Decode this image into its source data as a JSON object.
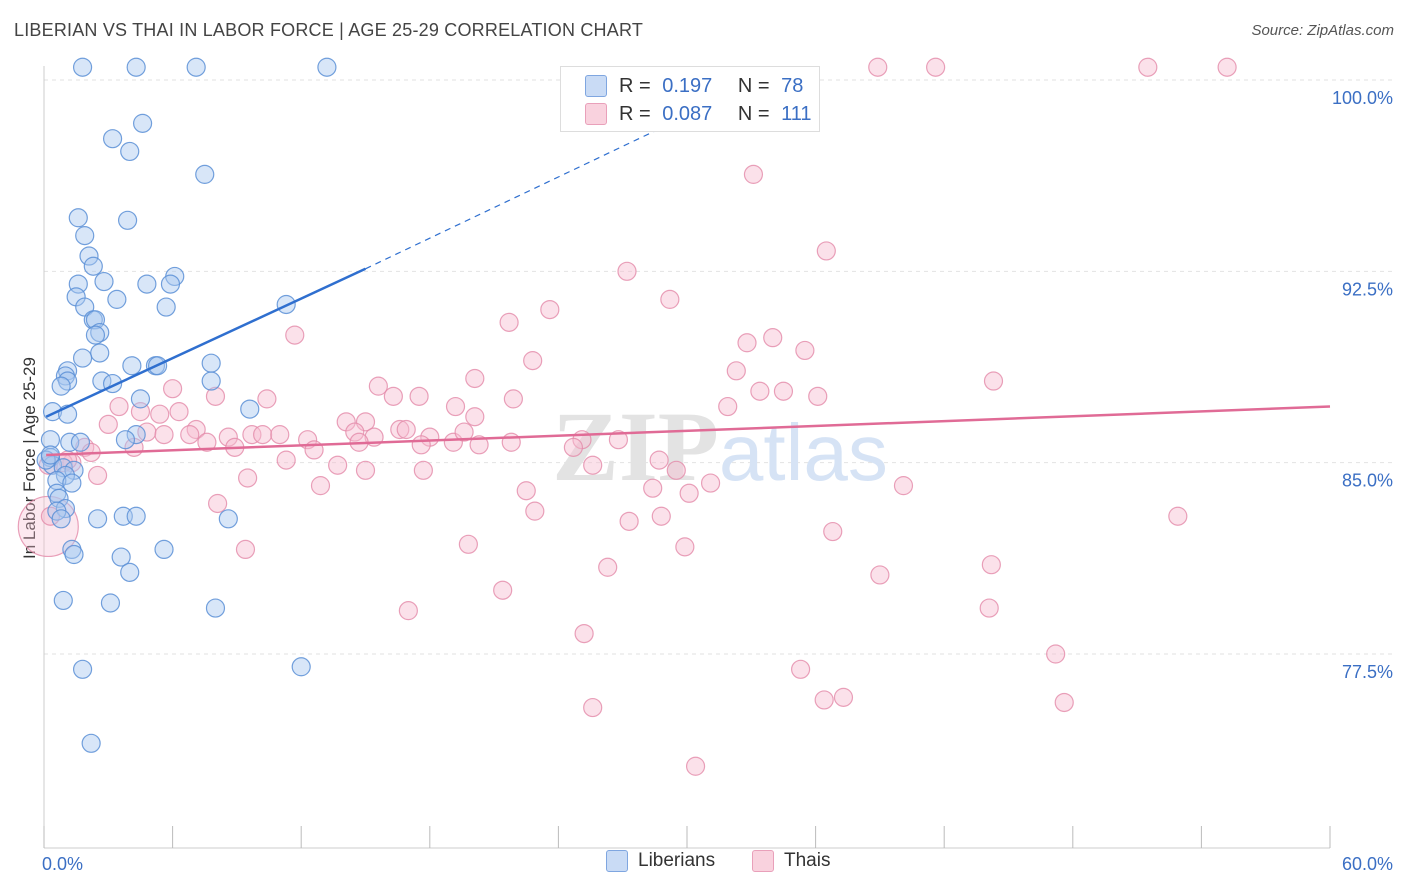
{
  "title": "LIBERIAN VS THAI IN LABOR FORCE | AGE 25-29 CORRELATION CHART",
  "source": "Source: ZipAtlas.com",
  "watermark": "ZIPatlas",
  "legend_top": {
    "rows": [
      {
        "r_label": "R =",
        "r_value": "0.197",
        "n_label": "N =",
        "n_value": "78"
      },
      {
        "r_label": "R =",
        "r_value": "0.087",
        "n_label": "N =",
        "n_value": "111"
      }
    ]
  },
  "legend_bottom": [
    "Liberians",
    "Thais"
  ],
  "colors": {
    "liberians_fill": "#a9c8f0",
    "liberians_stroke": "#5b8fd6",
    "liberians_line": "#2f6fcf",
    "thais_fill": "#f6bdd0",
    "thais_stroke": "#e48aa9",
    "thais_line": "#e06b96",
    "tick_label": "#3b6fc4",
    "grid": "#e2e2e2"
  },
  "chart_data": {
    "type": "scatter",
    "title": "LIBERIAN VS THAI IN LABOR FORCE | AGE 25-29 CORRELATION CHART",
    "xlabel": "",
    "ylabel": "In Labor Force | Age 25-29",
    "xlim": [
      0,
      60
    ],
    "ylim": [
      71,
      102
    ],
    "x_tick_labels": [
      "0.0%",
      "60.0%"
    ],
    "y_ticks": [
      77.5,
      85.0,
      92.5,
      100.0
    ],
    "y_tick_labels": [
      "77.5%",
      "85.0%",
      "92.5%",
      "100.0%"
    ],
    "grid": true,
    "legend_position": "top-center",
    "series": [
      {
        "name": "Liberians",
        "R": 0.197,
        "N": 78,
        "trend": {
          "x": [
            0.1,
            15.0
          ],
          "y": [
            86.8,
            92.6
          ],
          "dashed_to": [
            30.0,
            98.6
          ]
        },
        "points": [
          [
            1.8,
            100.5
          ],
          [
            4.3,
            100.5
          ],
          [
            7.1,
            100.5
          ],
          [
            13.2,
            100.5
          ],
          [
            4.6,
            98.3
          ],
          [
            3.2,
            97.7
          ],
          [
            4.0,
            97.2
          ],
          [
            7.5,
            96.3
          ],
          [
            1.6,
            94.6
          ],
          [
            3.9,
            94.5
          ],
          [
            1.9,
            93.9
          ],
          [
            2.1,
            93.1
          ],
          [
            2.3,
            92.7
          ],
          [
            6.1,
            92.3
          ],
          [
            2.8,
            92.1
          ],
          [
            4.8,
            92.0
          ],
          [
            5.9,
            92.0
          ],
          [
            1.6,
            92.0
          ],
          [
            1.5,
            91.5
          ],
          [
            3.4,
            91.4
          ],
          [
            11.3,
            91.2
          ],
          [
            5.7,
            91.1
          ],
          [
            1.9,
            91.1
          ],
          [
            2.3,
            90.6
          ],
          [
            2.4,
            90.6
          ],
          [
            2.6,
            90.1
          ],
          [
            2.4,
            90.0
          ],
          [
            2.6,
            89.3
          ],
          [
            1.8,
            89.1
          ],
          [
            1.1,
            88.6
          ],
          [
            7.8,
            88.9
          ],
          [
            4.1,
            88.8
          ],
          [
            5.2,
            88.8
          ],
          [
            5.3,
            88.8
          ],
          [
            1.0,
            88.4
          ],
          [
            1.1,
            88.2
          ],
          [
            0.8,
            88.0
          ],
          [
            2.7,
            88.2
          ],
          [
            3.2,
            88.1
          ],
          [
            7.8,
            88.2
          ],
          [
            4.5,
            87.5
          ],
          [
            9.6,
            87.1
          ],
          [
            0.4,
            87.0
          ],
          [
            1.1,
            86.9
          ],
          [
            4.3,
            86.1
          ],
          [
            3.8,
            85.9
          ],
          [
            1.2,
            85.8
          ],
          [
            0.3,
            85.9
          ],
          [
            1.7,
            85.8
          ],
          [
            0.3,
            85.2
          ],
          [
            0.4,
            84.9
          ],
          [
            0.9,
            84.8
          ],
          [
            1.4,
            84.7
          ],
          [
            1.0,
            84.5
          ],
          [
            0.6,
            84.3
          ],
          [
            1.3,
            84.2
          ],
          [
            0.6,
            83.8
          ],
          [
            0.7,
            83.6
          ],
          [
            1.0,
            83.2
          ],
          [
            0.6,
            83.1
          ],
          [
            0.8,
            82.8
          ],
          [
            2.5,
            82.8
          ],
          [
            3.7,
            82.9
          ],
          [
            4.3,
            82.9
          ],
          [
            8.6,
            82.8
          ],
          [
            1.3,
            81.6
          ],
          [
            1.4,
            81.4
          ],
          [
            5.6,
            81.6
          ],
          [
            3.6,
            81.3
          ],
          [
            4.0,
            80.7
          ],
          [
            0.9,
            79.6
          ],
          [
            3.1,
            79.5
          ],
          [
            8.0,
            79.3
          ],
          [
            1.8,
            76.9
          ],
          [
            12.0,
            77.0
          ],
          [
            2.2,
            74.0
          ],
          [
            0.1,
            85.1
          ],
          [
            0.3,
            85.3
          ]
        ]
      },
      {
        "name": "Thais",
        "R": 0.087,
        "N": 111,
        "trend": {
          "x": [
            0.1,
            60.0
          ],
          "y": [
            85.3,
            87.2
          ]
        },
        "points": [
          [
            0.2,
            82.5
          ],
          [
            38.9,
            100.5
          ],
          [
            41.6,
            100.5
          ],
          [
            51.5,
            100.5
          ],
          [
            55.2,
            100.5
          ],
          [
            33.1,
            96.3
          ],
          [
            36.5,
            93.3
          ],
          [
            27.2,
            92.5
          ],
          [
            29.2,
            91.4
          ],
          [
            23.6,
            91.0
          ],
          [
            21.7,
            90.5
          ],
          [
            11.7,
            90.0
          ],
          [
            32.8,
            89.7
          ],
          [
            34.0,
            89.9
          ],
          [
            35.5,
            89.4
          ],
          [
            22.8,
            89.0
          ],
          [
            32.3,
            88.6
          ],
          [
            20.1,
            88.3
          ],
          [
            44.3,
            88.2
          ],
          [
            15.6,
            88.0
          ],
          [
            33.4,
            87.8
          ],
          [
            34.5,
            87.8
          ],
          [
            6.0,
            87.9
          ],
          [
            8.0,
            87.6
          ],
          [
            10.4,
            87.5
          ],
          [
            16.3,
            87.6
          ],
          [
            17.5,
            87.6
          ],
          [
            21.9,
            87.5
          ],
          [
            36.1,
            87.6
          ],
          [
            3.5,
            87.2
          ],
          [
            4.5,
            87.0
          ],
          [
            5.4,
            86.9
          ],
          [
            6.3,
            87.0
          ],
          [
            19.2,
            87.2
          ],
          [
            20.1,
            86.8
          ],
          [
            14.1,
            86.6
          ],
          [
            15.0,
            86.6
          ],
          [
            31.9,
            87.2
          ],
          [
            3.0,
            86.5
          ],
          [
            7.1,
            86.3
          ],
          [
            4.8,
            86.2
          ],
          [
            5.6,
            86.1
          ],
          [
            6.8,
            86.1
          ],
          [
            8.6,
            86.0
          ],
          [
            9.7,
            86.1
          ],
          [
            10.2,
            86.1
          ],
          [
            11.0,
            86.1
          ],
          [
            12.3,
            85.9
          ],
          [
            14.5,
            86.2
          ],
          [
            15.4,
            86.0
          ],
          [
            16.6,
            86.3
          ],
          [
            16.9,
            86.3
          ],
          [
            18.0,
            86.0
          ],
          [
            19.1,
            85.8
          ],
          [
            21.8,
            85.8
          ],
          [
            7.6,
            85.8
          ],
          [
            8.9,
            85.6
          ],
          [
            12.6,
            85.5
          ],
          [
            14.7,
            85.8
          ],
          [
            17.6,
            85.7
          ],
          [
            19.6,
            86.2
          ],
          [
            20.3,
            85.7
          ],
          [
            25.1,
            85.9
          ],
          [
            26.8,
            85.9
          ],
          [
            1.9,
            85.6
          ],
          [
            2.2,
            85.4
          ],
          [
            4.2,
            85.6
          ],
          [
            1.3,
            85.0
          ],
          [
            0.9,
            85.0
          ],
          [
            11.3,
            85.1
          ],
          [
            13.7,
            84.9
          ],
          [
            15.0,
            84.7
          ],
          [
            17.7,
            84.7
          ],
          [
            24.7,
            85.6
          ],
          [
            25.6,
            84.9
          ],
          [
            28.7,
            85.1
          ],
          [
            29.5,
            84.7
          ],
          [
            2.5,
            84.5
          ],
          [
            9.5,
            84.4
          ],
          [
            12.9,
            84.1
          ],
          [
            22.5,
            83.9
          ],
          [
            28.4,
            84.0
          ],
          [
            31.1,
            84.2
          ],
          [
            30.1,
            83.8
          ],
          [
            8.1,
            83.4
          ],
          [
            22.9,
            83.1
          ],
          [
            27.3,
            82.7
          ],
          [
            28.8,
            82.9
          ],
          [
            40.1,
            84.1
          ],
          [
            52.9,
            82.9
          ],
          [
            36.8,
            82.3
          ],
          [
            19.8,
            81.8
          ],
          [
            29.9,
            81.7
          ],
          [
            9.4,
            81.6
          ],
          [
            26.3,
            80.9
          ],
          [
            39.0,
            80.6
          ],
          [
            44.2,
            81.0
          ],
          [
            21.4,
            80.0
          ],
          [
            17.0,
            79.2
          ],
          [
            44.1,
            79.3
          ],
          [
            25.2,
            78.3
          ],
          [
            35.3,
            76.9
          ],
          [
            36.4,
            75.7
          ],
          [
            37.3,
            75.8
          ],
          [
            25.6,
            75.4
          ],
          [
            47.2,
            77.5
          ],
          [
            47.6,
            75.6
          ],
          [
            30.4,
            73.1
          ],
          [
            0.3,
            82.9
          ],
          [
            1.1,
            85.1
          ],
          [
            0.2,
            84.9
          ]
        ]
      }
    ]
  }
}
